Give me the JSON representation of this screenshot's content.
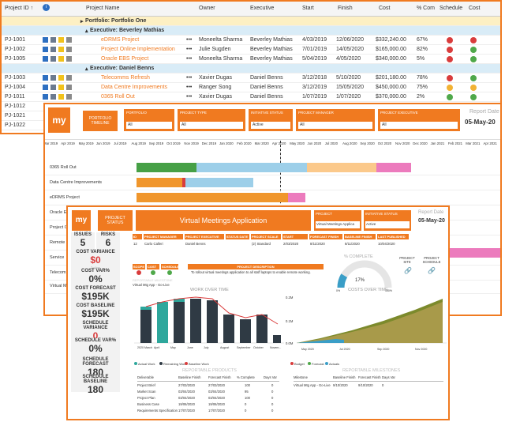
{
  "grid": {
    "columns": [
      "Project ID ↑",
      "Project Name",
      "Owner",
      "Executive",
      "Start",
      "Finish",
      "Cost",
      "% Com",
      "Schedule",
      "Cost"
    ],
    "portfolio_label": "Portfolio: Portfolio One",
    "groups": [
      {
        "label": "Executive: Beverley Mathias",
        "rows": [
          {
            "id": "PJ-1001",
            "name": "eDRMS Project",
            "owner": "Moneelta Sharma",
            "exec": "Beverley Mathias",
            "start": "4/03/2019",
            "finish": "12/06/2020",
            "cost": "$332,240.00",
            "pct": "67%",
            "s1": "#d93c3c",
            "s2": "#d93c3c"
          },
          {
            "id": "PJ-1002",
            "name": "Project Online Implementation",
            "owner": "Julie Sugden",
            "exec": "Beverley Mathias",
            "start": "7/01/2019",
            "finish": "14/05/2020",
            "cost": "$165,000.00",
            "pct": "82%",
            "s1": "#d93c3c",
            "s2": "#4fa84a"
          },
          {
            "id": "PJ-1005",
            "name": "Oracle EBS Project",
            "owner": "Moneelta Sharma",
            "exec": "Beverley Mathias",
            "start": "5/04/2019",
            "finish": "4/05/2020",
            "cost": "$340,000.00",
            "pct": "5%",
            "s1": "#d93c3c",
            "s2": "#4fa84a"
          }
        ]
      },
      {
        "label": "Executive: Daniel Benns",
        "rows": [
          {
            "id": "PJ-1003",
            "name": "Telecomms Refresh",
            "owner": "Xavier Dugas",
            "exec": "Daniel Benns",
            "start": "3/12/2018",
            "finish": "5/10/2020",
            "cost": "$201,180.00",
            "pct": "78%",
            "s1": "#d93c3c",
            "s2": "#4fa84a"
          },
          {
            "id": "PJ-1004",
            "name": "Data Centre Improvements",
            "owner": "Ranger Song",
            "exec": "Daniel Benns",
            "start": "3/12/2019",
            "finish": "15/05/2020",
            "cost": "$450,000.00",
            "pct": "75%",
            "s1": "#f2b233",
            "s2": "#f2b233"
          },
          {
            "id": "PJ-1011",
            "name": "0365 Roll Out",
            "owner": "Xavier Dugas",
            "exec": "Daniel Benns",
            "start": "1/07/2019",
            "finish": "1/07/2020",
            "cost": "$370,000.00",
            "pct": "2%",
            "s1": "#4fa84a",
            "s2": "#4fa84a"
          }
        ]
      }
    ],
    "extra_ids": [
      "PJ-1012",
      "PJ-1021",
      "PJ-1022"
    ]
  },
  "timeline": {
    "logo": "my",
    "tag": "PORTFOLIO TIMELINE",
    "filters": [
      {
        "label": "PORTFOLIO",
        "value": "All"
      },
      {
        "label": "PROJECT TYPE",
        "value": "All"
      },
      {
        "label": "INITIATIVE STATUS",
        "value": "Active"
      },
      {
        "label": "PROJECT MANAGER",
        "value": "All"
      },
      {
        "label": "PROJECT EXECUTIVE",
        "value": "All"
      }
    ],
    "report_date_label": "Report Date",
    "report_date": "05-May-20",
    "months": [
      "Mar 2019",
      "Apr 2019",
      "May 2019",
      "Jun 2019",
      "Jul 2019",
      "Aug 2019",
      "Sep 2019",
      "Oct 2019",
      "Nov 2019",
      "Dec 2019",
      "Jan 2020",
      "Feb 2020",
      "Mar 2020",
      "Apr 2020",
      "May 2020",
      "Jun 2020",
      "Jul 2020",
      "Aug 2020",
      "Sep 2020",
      "Oct 2020",
      "Nov 2020",
      "Dec 2020",
      "Jan 2021",
      "Feb 2021",
      "Mar 2021",
      "Apr 2021"
    ],
    "rows": [
      "0365 Roll Out",
      "Data Centre Improvements",
      "eDRMS Project",
      "Oracle E",
      "Project O",
      "Remote",
      "Service",
      "Telecom",
      "Virtual M"
    ]
  },
  "status": {
    "logo": "my",
    "tag": "PROJECT STATUS",
    "title": "Virtual Meetings Application",
    "project_label": "PROJECT",
    "project_value": "Virtual Meetings Applica",
    "initiative_label": "INITIATIVE STATUS",
    "initiative_value": "Active",
    "report_date_label": "Report Date",
    "report_date": "05-May-20",
    "kpis": [
      {
        "label": "ISSUES",
        "value": "5"
      },
      {
        "label": "RISKS",
        "value": "6"
      },
      {
        "label": "COST VARIANCE",
        "value": "$0",
        "sub": "Dollars",
        "color": "#d93c3c"
      },
      {
        "label": "COST VAR%",
        "value": "0%"
      },
      {
        "label": "COST FORECAST",
        "value": "$195K"
      },
      {
        "label": "COST BASELINE",
        "value": "$195K"
      },
      {
        "label": "SCHEDULE VARIANCE",
        "value": "0",
        "sub": "Duration",
        "color": "#d93c3c"
      },
      {
        "label": "SCHEDULE VAR%",
        "value": "0%"
      },
      {
        "label": "SCHEDULE FORECAST",
        "value": "180"
      },
      {
        "label": "SCHEDULE BASELINE",
        "value": "180"
      }
    ],
    "info_headers": [
      "ID",
      "PROJECT MANAGER",
      "PROJECT EXECUTIVE",
      "STATUS DATE",
      "PROJECT SCALE",
      "START",
      "FORECAST FINISH",
      "BASELINE FINISH",
      "LAST PUBLISHED"
    ],
    "info_values": [
      "12",
      "Carlo Calleri",
      "Daniel Benns",
      "",
      "(2) Standard",
      "2/03/2020",
      "8/11/2020",
      "8/11/2020",
      "10/04/2020"
    ],
    "health_headers": [
      "SCOPE",
      "COST",
      "SCHEDULE"
    ],
    "desc_label": "PROJECT DESCRIPTION",
    "desc_text": "To rollout virtual meetings application to all staff laptops to enable remote working.",
    "pct_label": "% COMPLETE",
    "pct_value": "17%",
    "pct_min": "0%",
    "pct_max": "100%",
    "site_label": "PROJECT SITE",
    "sched_label": "PROJECT SCHEDULE",
    "milestone_label": "REPORTABLE MILESTONE",
    "milestone_name": "Virtual Mtg App - Go-Live",
    "work_title": "WORK OVER TIME",
    "cost_title": "COSTS OVER TIME",
    "work_legend": [
      "Actual Work",
      "Remaining Work",
      "Baseline Work"
    ],
    "cost_legend": [
      "Budget",
      "Forecast",
      "Actuals"
    ],
    "work_months": [
      "2020 March",
      "April",
      "May",
      "June",
      "July",
      "August",
      "September",
      "October",
      "Novem..."
    ],
    "cost_months": [
      "May 2020",
      "Jul 2020",
      "Sep 2020",
      "Nov 2020"
    ],
    "cost_axis": [
      "0.2M",
      "0.1M",
      "0.0M"
    ],
    "products_title": "REPORTABLE PRODUCTS",
    "products_headers": [
      "Deliverable",
      "Baseline Finish",
      "Forecast Finish",
      "% Complete",
      "Days Var"
    ],
    "products": [
      [
        "Project Brief",
        "27/03/2020",
        "27/03/2020",
        "100",
        "0"
      ],
      [
        "Market Scan",
        "03/04/2020",
        "03/04/2020",
        "95",
        "0"
      ],
      [
        "Project Plan",
        "03/04/2020",
        "03/04/2020",
        "100",
        "0"
      ],
      [
        "Business Case",
        "19/06/2020",
        "19/06/2020",
        "0",
        "0"
      ],
      [
        "Requirements Specification",
        "17/07/2020",
        "17/07/2020",
        "0",
        "0"
      ]
    ],
    "milestones_title": "REPORTABLE MILESTONES",
    "milestones_headers": [
      "Milestone",
      "Baseline Finish",
      "Forecast Finish",
      "Days Var"
    ],
    "milestones": [
      [
        "Virtual Mtg App - Go-Live",
        "9/10/2020",
        "9/10/2020",
        "0"
      ]
    ]
  }
}
